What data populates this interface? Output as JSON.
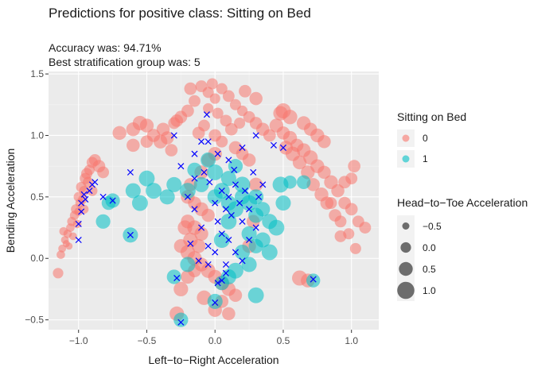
{
  "chart_data": {
    "type": "scatter",
    "title": "Predictions for positive class:  Sitting on Bed",
    "subtitle_lines": [
      "Accuracy was: 94.71%",
      "Best stratification group was: 5"
    ],
    "xlabel": "Left−to−Right Acceleration",
    "ylabel": "Bending Acceleration",
    "xlim": [
      -1.22,
      1.2
    ],
    "ylim": [
      -0.58,
      1.52
    ],
    "x_ticks": [
      -1.0,
      -0.5,
      0.0,
      0.5,
      1.0
    ],
    "x_tick_labels": [
      "−1.0",
      "−0.5",
      "0.0",
      "0.5",
      "1.0"
    ],
    "y_ticks": [
      -0.5,
      0.0,
      0.5,
      1.0,
      1.5
    ],
    "y_tick_labels": [
      "−0.5",
      "0.0",
      "0.5",
      "1.0",
      "1.5"
    ],
    "grid": true,
    "panel_background": "#ebebeb",
    "legend_placement": "right",
    "color_legend": {
      "title": "Sitting on Bed",
      "entries": [
        {
          "label": "0",
          "color": "#F8766D"
        },
        {
          "label": "1",
          "color": "#00BFC4"
        }
      ]
    },
    "size_legend": {
      "title": "Head−to−Toe Acceleration",
      "entries": [
        {
          "label": "−0.5",
          "value": -0.5
        },
        {
          "label": "0.0",
          "value": 0.0
        },
        {
          "label": "0.5",
          "value": 0.5
        },
        {
          "label": "1.0",
          "value": 1.0
        }
      ]
    },
    "misclassified_marker": "x",
    "misclassified_color": "#0000ff",
    "series": [
      {
        "name": "0",
        "color": "#F8766D",
        "points": [
          [
            -1.1,
            0.15,
            -0.4
          ],
          [
            -1.08,
            0.2,
            -0.3
          ],
          [
            -1.05,
            0.3,
            -0.2
          ],
          [
            -1.02,
            0.4,
            -0.1
          ],
          [
            -1.0,
            0.5,
            -0.1
          ],
          [
            -0.98,
            0.58,
            0.0
          ],
          [
            -0.95,
            0.65,
            0.1
          ],
          [
            -0.92,
            0.72,
            0.0
          ],
          [
            -0.9,
            0.78,
            0.1
          ],
          [
            -1.12,
            0.08,
            -0.4
          ],
          [
            -1.06,
            0.25,
            -0.3
          ],
          [
            -1.03,
            0.35,
            -0.2
          ],
          [
            -0.99,
            0.45,
            -0.2
          ],
          [
            -0.96,
            0.55,
            -0.1
          ],
          [
            -0.93,
            0.62,
            0.0
          ],
          [
            -1.09,
            0.12,
            -0.5
          ],
          [
            -1.15,
            -0.12,
            0.0
          ],
          [
            -1.13,
            0.03,
            -0.3
          ],
          [
            -1.0,
            0.38,
            -0.3
          ],
          [
            -0.97,
            0.48,
            -0.2
          ],
          [
            -1.04,
            0.18,
            -0.4
          ],
          [
            -1.07,
            0.1,
            -0.5
          ],
          [
            -0.94,
            0.69,
            0.1
          ],
          [
            -0.88,
            0.8,
            0.2
          ],
          [
            -0.85,
            0.75,
            0.3
          ],
          [
            -0.82,
            0.7,
            0.2
          ],
          [
            -0.9,
            0.55,
            0.0
          ],
          [
            -0.96,
            0.4,
            -0.2
          ],
          [
            -1.11,
            0.22,
            -0.3
          ],
          [
            -1.01,
            0.28,
            -0.3
          ],
          [
            -0.1,
            1.4,
            0.2
          ],
          [
            -0.05,
            1.35,
            0.1
          ],
          [
            0.0,
            1.3,
            0.0
          ],
          [
            0.05,
            1.38,
            0.1
          ],
          [
            0.1,
            1.32,
            0.2
          ],
          [
            0.15,
            1.25,
            0.1
          ],
          [
            0.2,
            1.2,
            0.0
          ],
          [
            -0.15,
            1.28,
            0.2
          ],
          [
            -0.2,
            1.2,
            0.3
          ],
          [
            -0.25,
            1.15,
            0.3
          ],
          [
            -0.3,
            1.1,
            0.2
          ],
          [
            -0.05,
            1.22,
            0.0
          ],
          [
            0.02,
            1.18,
            0.1
          ],
          [
            0.08,
            1.12,
            0.2
          ],
          [
            0.12,
            1.05,
            0.3
          ],
          [
            -0.08,
            1.08,
            0.2
          ],
          [
            0.0,
            1.0,
            0.3
          ],
          [
            0.05,
            0.95,
            0.2
          ],
          [
            -0.12,
            1.02,
            0.3
          ],
          [
            0.18,
            1.1,
            0.1
          ],
          [
            0.25,
            1.15,
            0.2
          ],
          [
            -0.18,
            1.38,
            0.3
          ],
          [
            0.22,
            1.36,
            0.3
          ],
          [
            0.3,
            1.3,
            0.4
          ],
          [
            -0.02,
            1.42,
            0.1
          ],
          [
            0.3,
            1.1,
            0.3
          ],
          [
            0.35,
            1.05,
            0.4
          ],
          [
            0.4,
            1.0,
            0.3
          ],
          [
            0.45,
            1.08,
            0.5
          ],
          [
            0.5,
            1.02,
            0.4
          ],
          [
            0.55,
            0.98,
            0.5
          ],
          [
            0.6,
            0.92,
            0.4
          ],
          [
            0.65,
            0.88,
            0.5
          ],
          [
            0.7,
            0.82,
            0.6
          ],
          [
            0.75,
            0.75,
            0.5
          ],
          [
            0.8,
            0.7,
            0.4
          ],
          [
            0.85,
            0.62,
            0.5
          ],
          [
            0.9,
            0.55,
            0.4
          ],
          [
            0.95,
            0.45,
            0.3
          ],
          [
            1.0,
            0.4,
            0.3
          ],
          [
            1.05,
            0.3,
            0.2
          ],
          [
            1.1,
            0.25,
            0.2
          ],
          [
            0.98,
            0.2,
            0.1
          ],
          [
            0.92,
            0.3,
            0.2
          ],
          [
            0.88,
            0.35,
            0.3
          ],
          [
            0.82,
            0.45,
            0.4
          ],
          [
            0.78,
            0.52,
            0.5
          ],
          [
            0.72,
            0.6,
            0.4
          ],
          [
            0.68,
            0.7,
            0.5
          ],
          [
            0.62,
            0.78,
            0.5
          ],
          [
            0.57,
            0.85,
            0.6
          ],
          [
            0.52,
            0.9,
            0.5
          ],
          [
            0.48,
            1.18,
            0.6
          ],
          [
            0.5,
            1.2,
            0.7
          ],
          [
            0.55,
            1.15,
            0.6
          ],
          [
            0.65,
            1.1,
            0.5
          ],
          [
            0.7,
            1.05,
            0.4
          ],
          [
            0.75,
            1.0,
            0.5
          ],
          [
            0.8,
            0.95,
            0.4
          ],
          [
            1.02,
            0.75,
            0.3
          ],
          [
            1.0,
            0.65,
            0.2
          ],
          [
            1.03,
            0.08,
            0.1
          ],
          [
            0.92,
            0.18,
            0.2
          ],
          [
            0.95,
            0.62,
            0.3
          ],
          [
            0.85,
            0.45,
            0.2
          ],
          [
            -0.6,
            1.05,
            0.5
          ],
          [
            -0.55,
            1.1,
            0.6
          ],
          [
            -0.5,
            1.08,
            0.5
          ],
          [
            -0.45,
            1.0,
            0.4
          ],
          [
            -0.4,
            0.95,
            0.5
          ],
          [
            -0.35,
            0.98,
            0.4
          ],
          [
            -0.5,
            0.95,
            0.3
          ],
          [
            -0.6,
            0.92,
            0.4
          ],
          [
            -0.7,
            1.02,
            0.5
          ],
          [
            -0.28,
            1.12,
            0.3
          ],
          [
            -0.32,
            0.88,
            0.3
          ],
          [
            -0.38,
            1.05,
            0.4
          ],
          [
            -0.2,
            0.5,
            0.5
          ],
          [
            -0.15,
            0.45,
            0.4
          ],
          [
            -0.1,
            0.4,
            0.5
          ],
          [
            -0.05,
            0.35,
            0.4
          ],
          [
            -0.2,
            0.3,
            0.5
          ],
          [
            -0.15,
            0.25,
            0.6
          ],
          [
            -0.1,
            0.2,
            0.5
          ],
          [
            -0.18,
            0.15,
            0.6
          ],
          [
            -0.12,
            0.1,
            0.5
          ],
          [
            -0.2,
            0.05,
            0.6
          ],
          [
            -0.15,
            0.0,
            0.6
          ],
          [
            -0.1,
            -0.05,
            0.5
          ],
          [
            -0.05,
            -0.1,
            0.6
          ],
          [
            0.0,
            -0.15,
            0.5
          ],
          [
            0.05,
            -0.2,
            0.6
          ],
          [
            0.1,
            -0.25,
            0.5
          ],
          [
            0.15,
            -0.3,
            0.4
          ],
          [
            -0.25,
            -0.25,
            0.6
          ],
          [
            -0.2,
            -0.15,
            0.5
          ],
          [
            -0.15,
            -0.1,
            0.4
          ],
          [
            -0.22,
            0.25,
            0.6
          ],
          [
            -0.25,
            0.1,
            0.5
          ],
          [
            -0.18,
            0.6,
            0.4
          ],
          [
            -0.1,
            0.7,
            0.5
          ],
          [
            -0.05,
            0.8,
            0.4
          ],
          [
            0.0,
            0.85,
            0.5
          ],
          [
            0.15,
            0.9,
            0.4
          ],
          [
            0.2,
            0.85,
            0.3
          ],
          [
            0.25,
            0.8,
            0.4
          ],
          [
            0.3,
            0.6,
            0.5
          ],
          [
            0.28,
            0.3,
            0.4
          ],
          [
            0.25,
            0.1,
            0.5
          ],
          [
            0.1,
            -0.45,
            0.4
          ],
          [
            -0.08,
            -0.32,
            0.6
          ],
          [
            0.0,
            -0.42,
            0.5
          ],
          [
            0.05,
            -0.35,
            0.4
          ],
          [
            0.62,
            -0.16,
            0.7
          ],
          [
            0.68,
            -0.18,
            0.5
          ],
          [
            -0.28,
            -0.45,
            0.6
          ]
        ]
      },
      {
        "name": "1",
        "color": "#00BFC4",
        "points": [
          [
            0.0,
            0.5,
            0.7
          ],
          [
            0.05,
            0.55,
            0.8
          ],
          [
            0.1,
            0.45,
            0.7
          ],
          [
            0.15,
            0.4,
            0.8
          ],
          [
            0.2,
            0.5,
            0.7
          ],
          [
            0.25,
            0.45,
            0.8
          ],
          [
            0.3,
            0.35,
            0.7
          ],
          [
            0.35,
            0.4,
            0.6
          ],
          [
            0.4,
            0.3,
            0.7
          ],
          [
            0.45,
            0.25,
            0.8
          ],
          [
            0.5,
            0.45,
            0.7
          ],
          [
            0.48,
            0.6,
            0.8
          ],
          [
            0.3,
            0.5,
            0.7
          ],
          [
            0.2,
            0.6,
            0.8
          ],
          [
            0.1,
            0.65,
            0.7
          ],
          [
            0.0,
            0.7,
            0.8
          ],
          [
            -0.1,
            0.6,
            0.7
          ],
          [
            -0.2,
            0.55,
            0.8
          ],
          [
            -0.35,
            0.5,
            0.7
          ],
          [
            -0.45,
            0.55,
            0.8
          ],
          [
            -0.5,
            0.65,
            0.8
          ],
          [
            -0.3,
            0.6,
            0.7
          ],
          [
            -0.15,
            0.72,
            0.6
          ],
          [
            -0.05,
            0.8,
            0.7
          ],
          [
            0.15,
            0.75,
            0.6
          ],
          [
            0.25,
            0.2,
            0.7
          ],
          [
            0.3,
            0.1,
            0.6
          ],
          [
            0.35,
            0.15,
            0.7
          ],
          [
            0.4,
            0.05,
            0.8
          ],
          [
            0.2,
            0.05,
            0.7
          ],
          [
            0.15,
            -0.1,
            0.8
          ],
          [
            0.25,
            -0.05,
            0.7
          ],
          [
            0.3,
            -0.3,
            0.8
          ],
          [
            0.1,
            -0.15,
            0.7
          ],
          [
            0.05,
            -0.2,
            0.6
          ],
          [
            0.0,
            -0.35,
            0.7
          ],
          [
            -0.25,
            -0.5,
            0.6
          ],
          [
            -0.3,
            -0.15,
            0.6
          ],
          [
            -0.2,
            -0.05,
            0.7
          ],
          [
            -0.62,
            0.19,
            0.7
          ],
          [
            -0.75,
            0.47,
            0.6
          ],
          [
            -0.78,
            0.45,
            0.5
          ],
          [
            -0.82,
            0.3,
            0.6
          ],
          [
            0.72,
            -0.18,
            0.5
          ],
          [
            0.65,
            0.62,
            0.5
          ],
          [
            0.55,
            0.62,
            0.4
          ],
          [
            -0.6,
            0.55,
            0.7
          ],
          [
            -0.55,
            0.45,
            0.8
          ],
          [
            0.05,
            0.15,
            0.8
          ],
          [
            0.1,
            0.3,
            0.8
          ]
        ]
      }
    ],
    "misclassified": [
      [
        -1.0,
        0.28
      ],
      [
        -0.98,
        0.38
      ],
      [
        -0.95,
        0.48
      ],
      [
        -0.92,
        0.55
      ],
      [
        -0.9,
        0.6
      ],
      [
        -1.0,
        0.15
      ],
      [
        -0.98,
        0.45
      ],
      [
        -0.96,
        0.52
      ],
      [
        -0.88,
        0.62
      ],
      [
        -0.82,
        0.5
      ],
      [
        -0.62,
        0.7
      ],
      [
        -0.62,
        0.19
      ],
      [
        -0.75,
        0.47
      ],
      [
        -0.28,
        -0.16
      ],
      [
        -0.25,
        -0.52
      ],
      [
        0.0,
        -0.36
      ],
      [
        0.02,
        -0.2
      ],
      [
        0.05,
        -0.18
      ],
      [
        0.08,
        -0.12
      ],
      [
        0.72,
        -0.17
      ],
      [
        0.43,
        0.92
      ],
      [
        0.5,
        0.9
      ],
      [
        -0.06,
        1.17
      ],
      [
        -0.05,
        0.95
      ],
      [
        -0.3,
        1.0
      ],
      [
        -0.15,
        0.85
      ],
      [
        -0.08,
        0.7
      ],
      [
        -0.2,
        0.5
      ],
      [
        -0.15,
        0.4
      ],
      [
        -0.1,
        0.25
      ],
      [
        -0.05,
        0.1
      ],
      [
        0.0,
        0.45
      ],
      [
        0.02,
        0.3
      ],
      [
        0.05,
        0.55
      ],
      [
        0.05,
        0.2
      ],
      [
        0.08,
        0.4
      ],
      [
        0.1,
        0.5
      ],
      [
        0.1,
        0.15
      ],
      [
        0.12,
        0.35
      ],
      [
        0.15,
        0.6
      ],
      [
        0.15,
        0.05
      ],
      [
        0.18,
        0.45
      ],
      [
        0.2,
        0.3
      ],
      [
        0.2,
        -0.02
      ],
      [
        0.22,
        0.55
      ],
      [
        0.25,
        0.15
      ],
      [
        0.25,
        0.4
      ],
      [
        0.28,
        0.7
      ],
      [
        0.3,
        1.0
      ],
      [
        0.3,
        0.25
      ],
      [
        0.32,
        0.5
      ],
      [
        -0.05,
        -0.05
      ],
      [
        -0.12,
        -0.02
      ],
      [
        -0.18,
        0.12
      ],
      [
        0.0,
        0.05
      ],
      [
        0.1,
        0.8
      ],
      [
        0.2,
        0.9
      ],
      [
        -0.1,
        0.95
      ],
      [
        -0.25,
        0.75
      ],
      [
        0.35,
        0.6
      ],
      [
        0.02,
        0.85
      ],
      [
        -0.04,
        0.62
      ],
      [
        0.14,
        0.72
      ],
      [
        0.08,
        -0.05
      ],
      [
        -0.15,
        0.65
      ]
    ]
  }
}
